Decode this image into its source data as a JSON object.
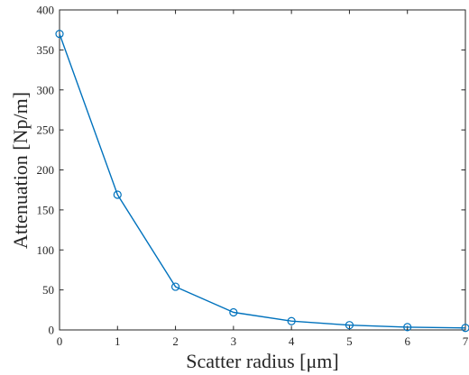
{
  "chart_data": {
    "type": "line",
    "xlabel": "Scatter radius [μm]",
    "ylabel": "Attenuation [Np/m]",
    "xlim": [
      0,
      7
    ],
    "ylim": [
      0,
      400
    ],
    "xticks": [
      "0",
      "1",
      "2",
      "3",
      "4",
      "5",
      "6",
      "7"
    ],
    "yticks": [
      "0",
      "50",
      "100",
      "150",
      "200",
      "250",
      "300",
      "350",
      "400"
    ],
    "grid": false,
    "box": true,
    "marker": "circle",
    "series": [
      {
        "color": "#0072BD",
        "x": [
          0,
          1,
          2,
          3,
          4,
          5,
          6,
          7
        ],
        "y": [
          370,
          169,
          54,
          22,
          11,
          6,
          3.5,
          2.5
        ]
      }
    ]
  }
}
